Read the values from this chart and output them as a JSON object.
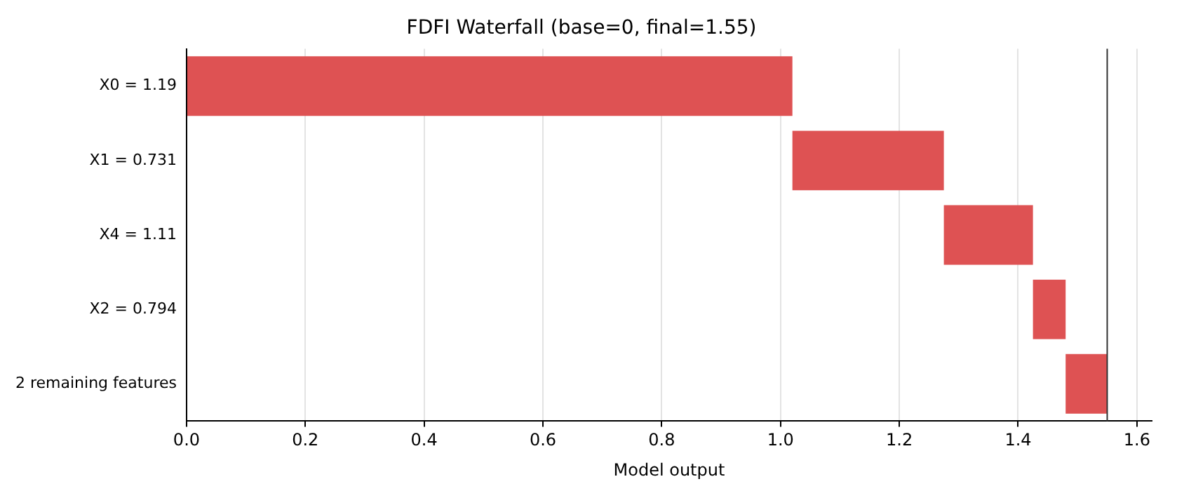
{
  "chart_data": {
    "type": "bar",
    "orientation": "horizontal",
    "title": "FDFI Waterfall (base=0, final=1.55)",
    "xlabel": "Model output",
    "categories": [
      "X0 = 1.19",
      "X1 = 0.731",
      "X4 = 1.11",
      "X2 = 0.794",
      "2 remaining features"
    ],
    "values": [
      1.02,
      0.255,
      0.15,
      0.055,
      0.07
    ],
    "base": [
      0,
      1.02,
      1.275,
      1.425,
      1.48
    ],
    "color": "#de5253",
    "xlim": [
      0,
      1.625
    ],
    "xticks": [
      {
        "value": 0,
        "label": "0.0"
      },
      {
        "value": 0.2,
        "label": "0.2"
      },
      {
        "value": 0.4,
        "label": "0.4"
      },
      {
        "value": 0.6,
        "label": "0.6"
      },
      {
        "value": 0.8,
        "label": "0.8"
      },
      {
        "value": 1,
        "label": "1.0"
      },
      {
        "value": 1.2,
        "label": "1.2"
      },
      {
        "value": 1.4,
        "label": "1.4"
      },
      {
        "value": 1.6,
        "label": "1.6"
      }
    ],
    "grid": "x",
    "legend": false,
    "ref_lines": [
      {
        "axis": "x",
        "value": 1.55,
        "color": "#333333"
      }
    ]
  }
}
